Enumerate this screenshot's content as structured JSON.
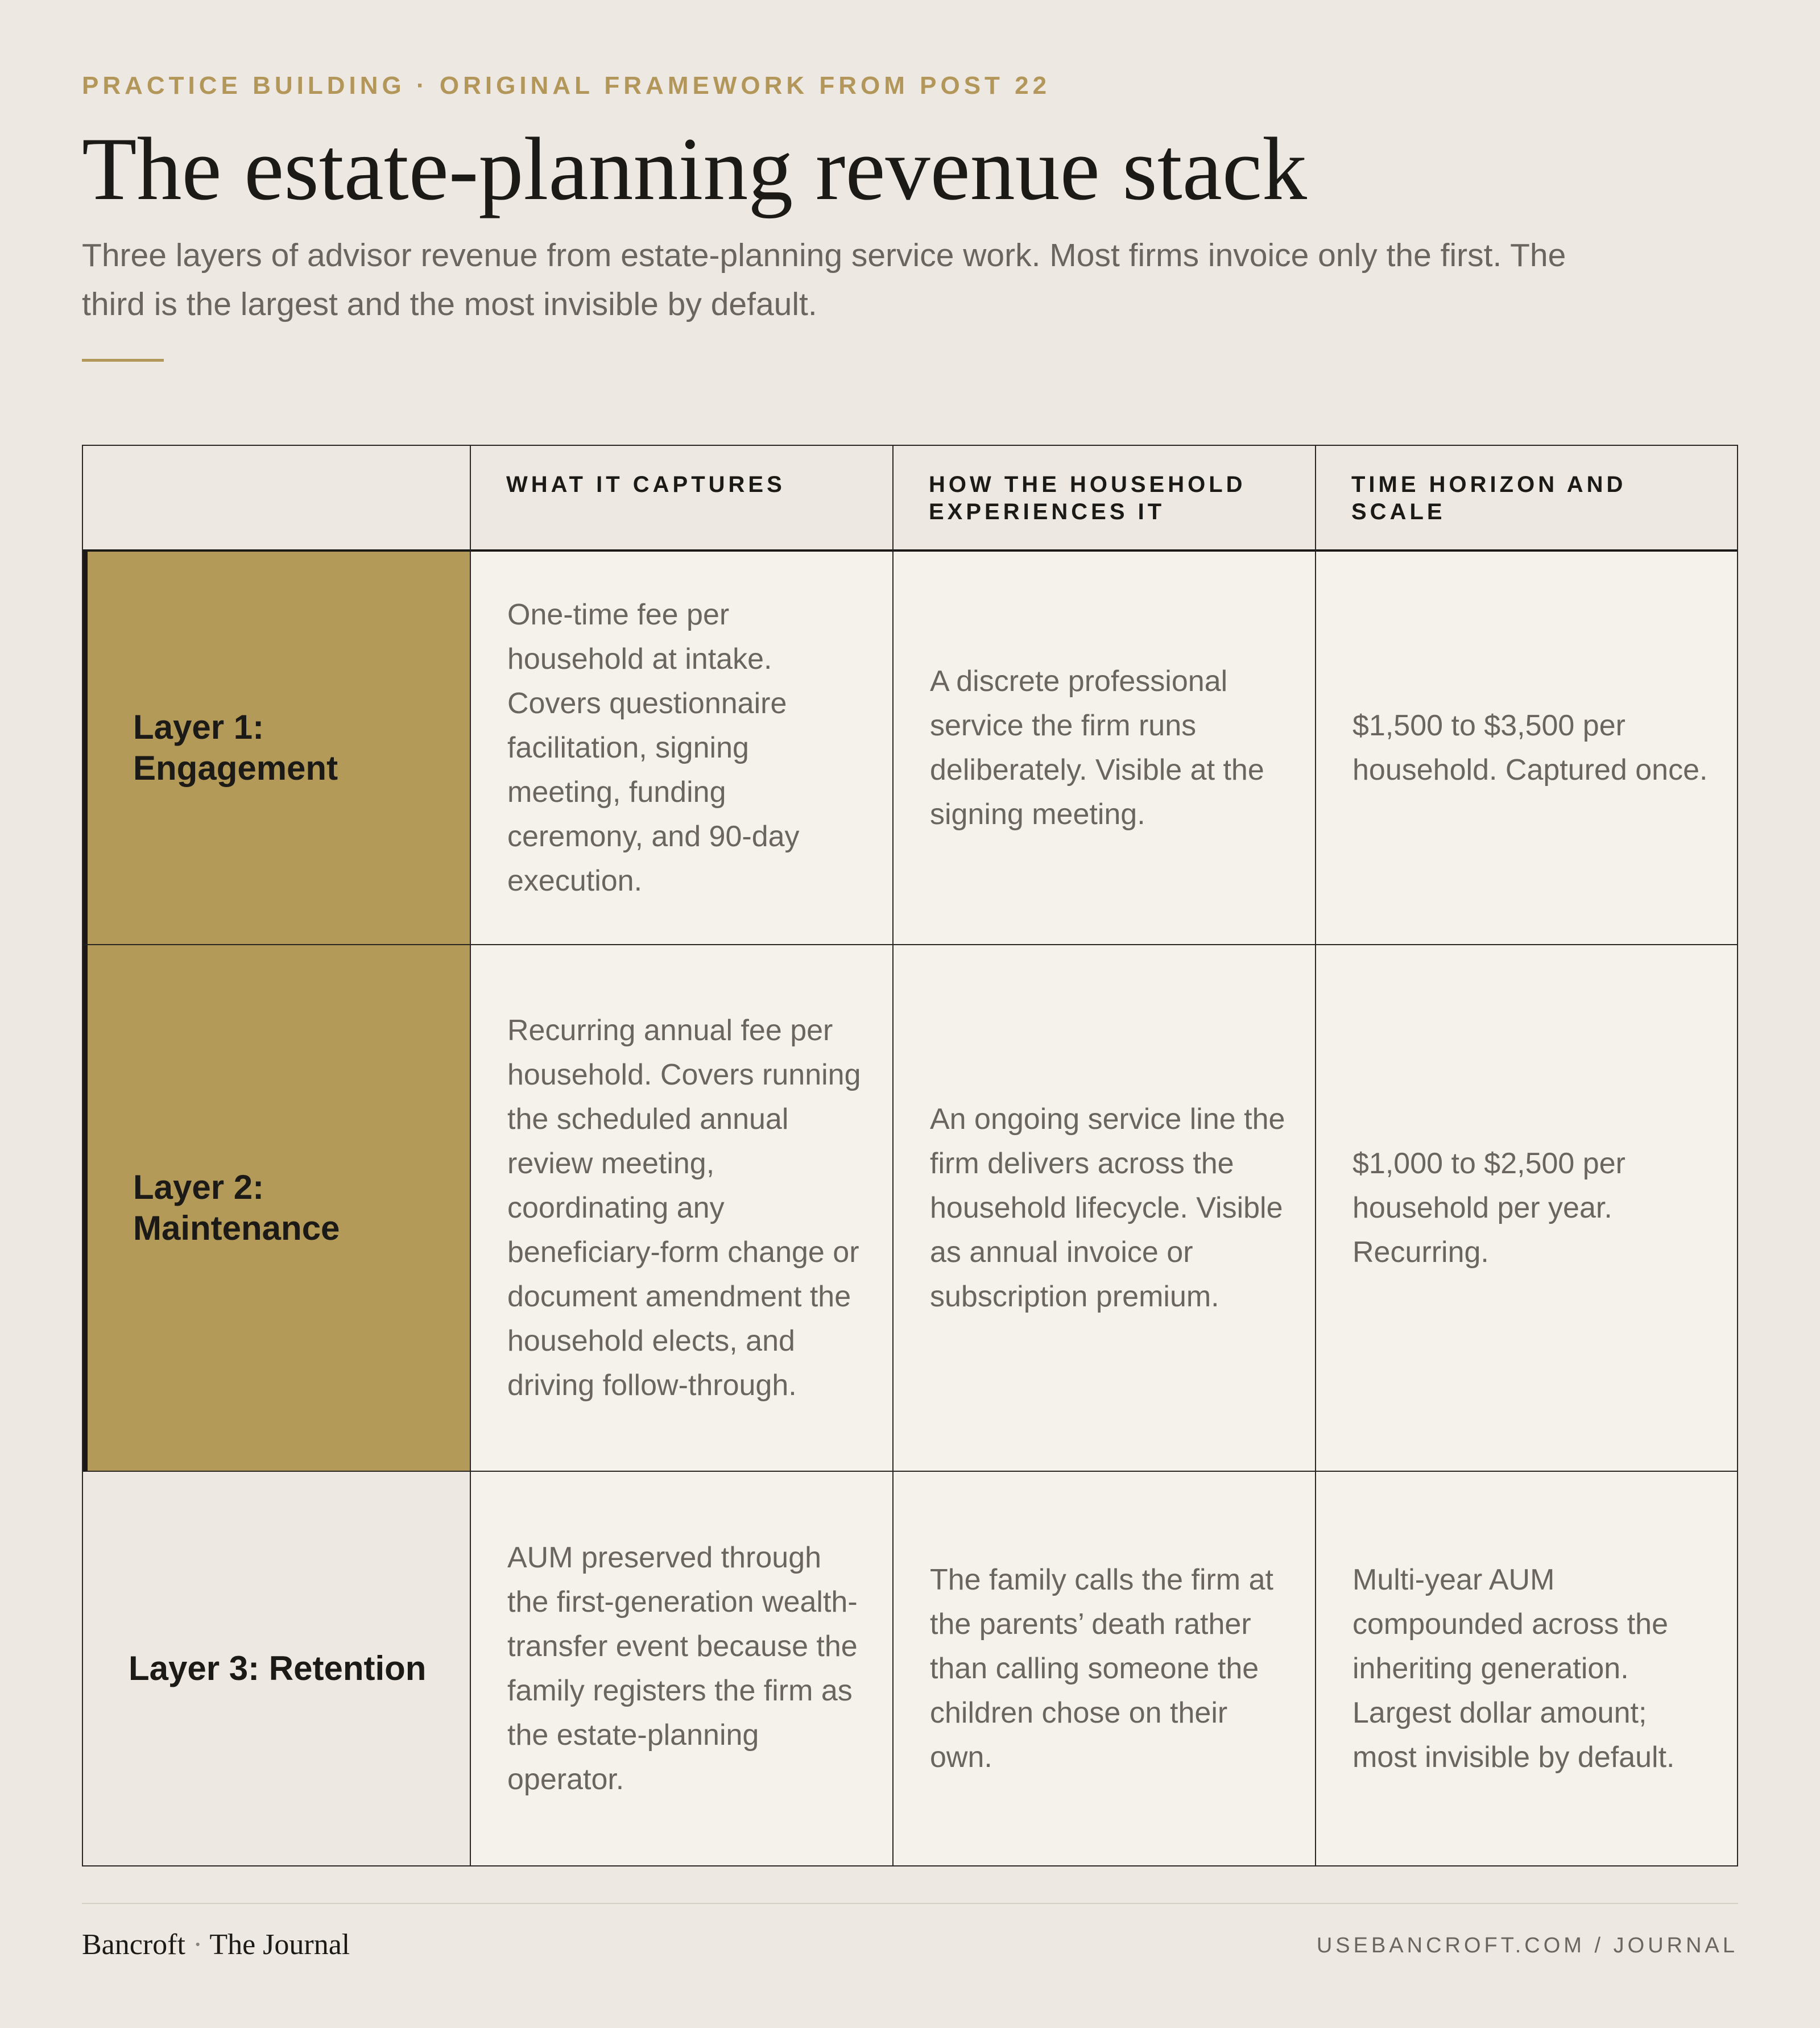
{
  "header": {
    "eyebrow": "PRACTICE BUILDING · ORIGINAL FRAMEWORK FROM POST 22",
    "title": "The estate-planning revenue stack",
    "subtitle": "Three layers of advisor revenue from estate-planning service work. Most firms invoice only the first. The third is the largest and the most invisible by default."
  },
  "table": {
    "columns": [
      "",
      "WHAT IT CAPTURES",
      "HOW THE HOUSEHOLD EXPERIENCES IT",
      "TIME HORIZON AND SCALE"
    ],
    "rows": [
      {
        "layer": "Layer 1: Engagement",
        "captures": "One-time fee per household at intake. Covers questionnaire facilitation, signing meeting, funding ceremony, and 90-day execution.",
        "experience": "A discrete professional service the firm runs deliberately. Visible at the signing meeting.",
        "horizon": "$1,500 to $3,500 per household. Captured once."
      },
      {
        "layer": "Layer 2: Maintenance",
        "captures": "Recurring annual fee per household. Covers running the scheduled annual review meeting, coordinating any beneficiary-form change or document amendment the household elects, and driving follow-through.",
        "experience": "An ongoing service line the firm delivers across the household lifecycle. Visible as annual invoice or subscription premium.",
        "horizon": "$1,000 to $2,500 per household per year. Recurring."
      },
      {
        "layer": "Layer 3: Retention",
        "captures": "AUM preserved through the first-generation wealth-transfer event because the family registers the firm as the estate-planning operator.",
        "experience": "The family calls the firm at the parents’ death rather than calling someone the children chose on their own.",
        "horizon": "Multi-year AUM compounded across the inheriting generation. Largest dollar amount; most invisible by default."
      }
    ]
  },
  "footer": {
    "brand_name": "Bancroft",
    "brand_sep": "·",
    "brand_suffix": "The Journal",
    "site": "USEBANCROFT.COM / JOURNAL"
  },
  "colors": {
    "page_bg": "#ede8e1",
    "accent_gold": "#b3975a",
    "highlight_fill": "#b49a58",
    "cell_bg": "#f5f2eb",
    "ink": "#1c1a17",
    "muted_text": "#6b6560"
  }
}
